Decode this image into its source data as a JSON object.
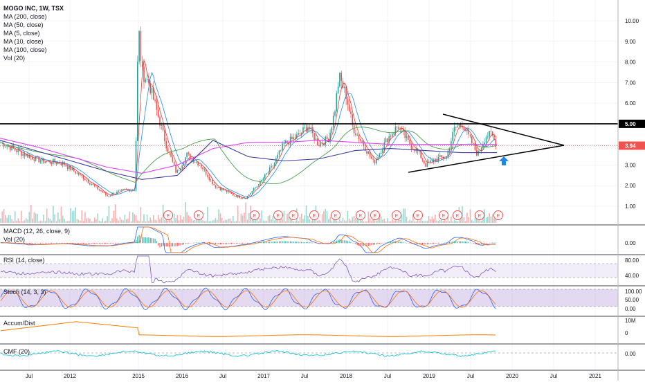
{
  "chart_data": [
    {
      "type": "line",
      "title": "MOGO INC, 1W, TSX",
      "legend": [
        "MA (200, close)",
        "MA (50, close)",
        "MA (5, close)",
        "MA (10, close)",
        "MA (100, close)",
        "Vol (20)"
      ],
      "y_ticks": [
        "10.00",
        "9.00",
        "8.00",
        "7.00",
        "6.00",
        "5.00",
        "4.00",
        "3.00",
        "2.00",
        "1.00"
      ],
      "ylim": [
        0.5,
        10.5
      ],
      "price_line": {
        "value": 5.0,
        "label": "5.00"
      },
      "last_price": {
        "value": 3.94,
        "label": "3.94"
      },
      "x_ticks": [
        "Jul",
        "2012",
        "2015",
        "2016",
        "Jul",
        "2017",
        "Jul",
        "2018",
        "Jul",
        "2019",
        "Jul",
        "2020",
        "Jul",
        "2021"
      ],
      "events_label": "E",
      "series": [
        {
          "name": "MA (200, close)",
          "values": [
            4.3,
            3.9,
            3.4,
            2.9,
            2.6,
            3.0,
            3.8,
            4.1,
            4.1,
            4.2,
            4.1,
            4.0,
            4.0,
            4.0,
            4.0
          ],
          "color": "#e040fb"
        },
        {
          "name": "MA (100, close)",
          "values": [
            4.2,
            3.7,
            3.2,
            2.7,
            2.3,
            2.5,
            4.2,
            3.4,
            3.2,
            3.3,
            3.7,
            3.8,
            3.7,
            3.6,
            3.6
          ],
          "color": "#3d3d9e"
        }
      ]
    },
    {
      "type": "line",
      "title": "MACD (12, 26, close, 9)",
      "subtitle": "Vol (20)",
      "y_ticks": [
        "0.00"
      ]
    },
    {
      "type": "line",
      "title": "RSI (14, close)",
      "y_ticks": [
        "80.00",
        "40.00"
      ]
    },
    {
      "type": "line",
      "title": "Stoch (14, 3, 3)",
      "y_ticks": [
        "100.00",
        "50.00",
        "0.00"
      ]
    },
    {
      "type": "line",
      "title": "Accum/Dist",
      "y_ticks": [
        "10M",
        "0"
      ]
    },
    {
      "type": "line",
      "title": "CMF (20)",
      "y_ticks": [
        "0.00"
      ]
    }
  ]
}
